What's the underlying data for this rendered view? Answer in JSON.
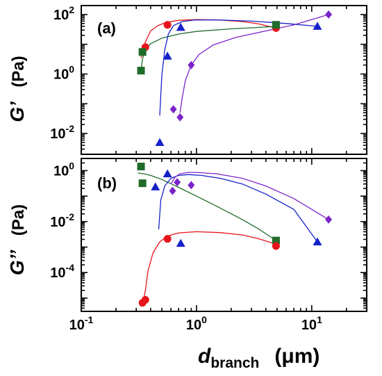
{
  "chart_data": [
    {
      "panel": "(a)",
      "type": "scatter",
      "title": "",
      "ylabel_symbol": "G’",
      "ylabel_unit": "(Pa)",
      "xlabel_symbol": "d",
      "xlabel_subscript": "branch",
      "xlabel_unit": "(μm)",
      "xscale": "log",
      "yscale": "log",
      "xlim": [
        0.1,
        30
      ],
      "ylim": [
        0.002,
        200
      ],
      "x_ticks": [
        0.1,
        1,
        10
      ],
      "x_tick_labels": [
        {
          "base": "10",
          "exp": "-1"
        },
        {
          "base": "10",
          "exp": "0"
        },
        {
          "base": "10",
          "exp": "1"
        }
      ],
      "y_ticks": [
        0.01,
        1,
        100
      ],
      "y_tick_labels": [
        {
          "base": "10",
          "exp": "-2"
        },
        {
          "base": "10",
          "exp": "0"
        },
        {
          "base": "10",
          "exp": "2"
        }
      ],
      "grid": false,
      "series": [
        {
          "color": "#e8141c",
          "marker": "circle",
          "x": [
            0.34,
            0.36,
            0.56,
            4.9
          ],
          "y": [
            5.5,
            8.0,
            45,
            35
          ],
          "curve_x": [
            0.33,
            0.36,
            0.4,
            0.46,
            0.55,
            0.7,
            1.0,
            1.5,
            2.5,
            3.5,
            4.9
          ],
          "curve_y": [
            3.5,
            12,
            28,
            42,
            55,
            64,
            68,
            66,
            58,
            48,
            35
          ]
        },
        {
          "color": "#1f6b2a",
          "marker": "square",
          "x": [
            0.33,
            0.34,
            4.9
          ],
          "y": [
            1.3,
            5.5,
            45
          ],
          "curve_x": [
            0.33,
            0.34,
            0.36,
            0.4,
            0.5,
            0.7,
            1.0,
            2.0,
            3.5,
            4.9
          ],
          "curve_y": [
            1.3,
            3.3,
            6.5,
            10.5,
            16,
            22,
            27,
            33,
            37,
            40
          ]
        },
        {
          "color": "#1522c8",
          "marker": "triangle",
          "x": [
            0.48,
            0.56,
            0.73,
            11.2
          ],
          "y": [
            0.005,
            4.0,
            37,
            40
          ],
          "curve_x": [
            0.48,
            0.5,
            0.53,
            0.57,
            0.63,
            0.75,
            0.95,
            1.5,
            3.0,
            6.0,
            11.2
          ],
          "curve_y": [
            0.04,
            0.9,
            6.5,
            22,
            42,
            58,
            65,
            66,
            60,
            50,
            40
          ]
        },
        {
          "color": "#7b25c9",
          "marker": "diamond",
          "x": [
            0.63,
            0.72,
            0.9,
            14.0
          ],
          "y": [
            0.065,
            0.035,
            2.0,
            100
          ],
          "curve_x": [
            0.72,
            0.75,
            0.8,
            0.9,
            1.05,
            1.4,
            2.2,
            4.0,
            7.0,
            10.0,
            14.0
          ],
          "curve_y": [
            0.05,
            0.15,
            0.6,
            2.0,
            4.5,
            9.5,
            17,
            28,
            45,
            68,
            100
          ]
        }
      ]
    },
    {
      "panel": "(b)",
      "type": "scatter",
      "title": "",
      "ylabel_symbol": "G’’",
      "ylabel_unit": "(Pa)",
      "xscale": "log",
      "yscale": "log",
      "xlim": [
        0.1,
        30
      ],
      "ylim": [
        3e-06,
        3
      ],
      "x_ticks": [
        0.1,
        1,
        10
      ],
      "y_ticks": [
        0.0001,
        0.01,
        1
      ],
      "y_tick_labels": [
        {
          "base": "10",
          "exp": "-4"
        },
        {
          "base": "10",
          "exp": "-2"
        },
        {
          "base": "10",
          "exp": "0"
        }
      ],
      "grid": false,
      "series": [
        {
          "color": "#1f6b2a",
          "marker": "square",
          "x": [
            0.33,
            0.34,
            4.9
          ],
          "y": [
            1.45,
            0.32,
            0.0018
          ],
          "curve_x": [
            0.31,
            0.35,
            0.4,
            0.5,
            0.7,
            1.0,
            1.5,
            2.5,
            3.5,
            4.9
          ],
          "curve_y": [
            0.8,
            0.75,
            0.65,
            0.45,
            0.22,
            0.1,
            0.04,
            0.012,
            0.005,
            0.0018
          ]
        },
        {
          "color": "#1522c8",
          "marker": "triangle",
          "x": [
            0.44,
            0.56,
            0.73,
            11.2
          ],
          "y": [
            0.23,
            0.75,
            0.0014,
            0.0016
          ],
          "curve_x": [
            0.47,
            0.49,
            0.53,
            0.6,
            0.7,
            0.85,
            1.1,
            1.6,
            2.5,
            4.0,
            7.0,
            11.2
          ],
          "curve_y": [
            0.005,
            0.07,
            0.25,
            0.5,
            0.65,
            0.7,
            0.65,
            0.5,
            0.3,
            0.12,
            0.03,
            0.0016
          ]
        },
        {
          "color": "#7b25c9",
          "marker": "diamond",
          "x": [
            0.62,
            0.68,
            0.9,
            14.0
          ],
          "y": [
            0.16,
            0.35,
            0.27,
            0.012
          ],
          "curve_x": [
            0.6,
            0.65,
            0.72,
            0.85,
            1.0,
            1.5,
            2.5,
            4.0,
            7.0,
            14.0
          ],
          "curve_y": [
            0.3,
            0.55,
            0.75,
            0.85,
            0.85,
            0.75,
            0.5,
            0.25,
            0.08,
            0.012
          ]
        },
        {
          "color": "#e8141c",
          "marker": "circle",
          "x": [
            0.34,
            0.36,
            0.56,
            4.9
          ],
          "y": [
            6.5e-06,
            8.5e-06,
            0.0021,
            0.0011
          ],
          "curve_x": [
            0.34,
            0.36,
            0.38,
            0.42,
            0.48,
            0.56,
            0.7,
            1.0,
            1.6,
            2.5,
            3.5,
            4.9
          ],
          "curve_y": [
            5e-06,
            2e-05,
            0.00012,
            0.0006,
            0.0016,
            0.0027,
            0.0036,
            0.004,
            0.0037,
            0.003,
            0.0021,
            0.0013
          ]
        }
      ]
    }
  ]
}
